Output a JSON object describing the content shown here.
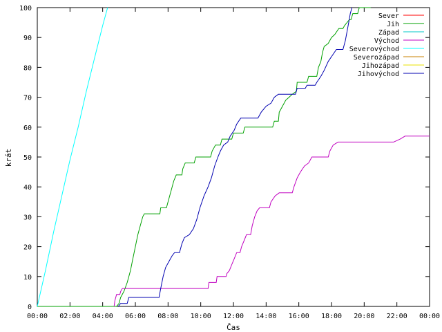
{
  "chart_data": {
    "type": "line",
    "xlabel": "Čas",
    "ylabel": "krát",
    "xlim": [
      0,
      24
    ],
    "ylim": [
      0,
      100
    ],
    "x_ticks": [
      "00:00",
      "02:00",
      "04:00",
      "06:00",
      "08:00",
      "10:00",
      "12:00",
      "14:00",
      "16:00",
      "18:00",
      "20:00",
      "22:00",
      "00:00"
    ],
    "x_tick_values": [
      0,
      2,
      4,
      6,
      8,
      10,
      12,
      14,
      16,
      18,
      20,
      22,
      24
    ],
    "y_ticks": [
      0,
      10,
      20,
      30,
      40,
      50,
      60,
      70,
      80,
      90,
      100
    ],
    "legend_position": "top-right",
    "grid": false,
    "series": [
      {
        "name": "Sever",
        "color": "#ff0000",
        "points": []
      },
      {
        "name": "Jih",
        "color": "#00a000",
        "points": [
          [
            0,
            0
          ],
          [
            4.85,
            0
          ],
          [
            5.0,
            1
          ],
          [
            5.1,
            3
          ],
          [
            5.3,
            5
          ],
          [
            5.5,
            8
          ],
          [
            5.7,
            12
          ],
          [
            5.85,
            16
          ],
          [
            6.0,
            20
          ],
          [
            6.15,
            24
          ],
          [
            6.3,
            27
          ],
          [
            6.45,
            30
          ],
          [
            6.55,
            31
          ],
          [
            7.5,
            31
          ],
          [
            7.55,
            33
          ],
          [
            7.9,
            33
          ],
          [
            8.05,
            36
          ],
          [
            8.2,
            39
          ],
          [
            8.35,
            42
          ],
          [
            8.5,
            44
          ],
          [
            8.85,
            44
          ],
          [
            8.9,
            46
          ],
          [
            9.05,
            48
          ],
          [
            9.6,
            48
          ],
          [
            9.7,
            50
          ],
          [
            10.6,
            50
          ],
          [
            10.7,
            52
          ],
          [
            10.9,
            54
          ],
          [
            11.2,
            54
          ],
          [
            11.3,
            56
          ],
          [
            11.9,
            56
          ],
          [
            12.0,
            58
          ],
          [
            12.6,
            58
          ],
          [
            12.7,
            60
          ],
          [
            14.4,
            60
          ],
          [
            14.5,
            62
          ],
          [
            14.75,
            62
          ],
          [
            14.8,
            65
          ],
          [
            15.0,
            67
          ],
          [
            15.2,
            69
          ],
          [
            15.4,
            70
          ],
          [
            15.6,
            71
          ],
          [
            15.85,
            72
          ],
          [
            15.9,
            75
          ],
          [
            16.5,
            75
          ],
          [
            16.6,
            77
          ],
          [
            17.1,
            77
          ],
          [
            17.2,
            80
          ],
          [
            17.35,
            82
          ],
          [
            17.45,
            85
          ],
          [
            17.55,
            87
          ],
          [
            17.8,
            88
          ],
          [
            18.0,
            90
          ],
          [
            18.2,
            91
          ],
          [
            18.45,
            93
          ],
          [
            18.7,
            93
          ],
          [
            18.8,
            94
          ],
          [
            18.95,
            95
          ],
          [
            19.1,
            96
          ],
          [
            19.2,
            96
          ],
          [
            19.3,
            98
          ],
          [
            19.6,
            98
          ],
          [
            19.7,
            100
          ],
          [
            20.4,
            100
          ]
        ]
      },
      {
        "name": "Západ",
        "color": "#00c8c8",
        "points": []
      },
      {
        "name": "Východ",
        "color": "#c000c0",
        "points": [
          [
            4.7,
            0
          ],
          [
            4.75,
            2
          ],
          [
            4.85,
            4
          ],
          [
            5.05,
            4
          ],
          [
            5.1,
            5
          ],
          [
            5.2,
            6
          ],
          [
            10.45,
            6
          ],
          [
            10.5,
            8
          ],
          [
            10.95,
            8
          ],
          [
            11.0,
            10
          ],
          [
            11.55,
            10
          ],
          [
            11.6,
            11
          ],
          [
            11.75,
            12
          ],
          [
            11.9,
            14
          ],
          [
            12.05,
            16
          ],
          [
            12.2,
            18
          ],
          [
            12.4,
            18
          ],
          [
            12.5,
            20
          ],
          [
            12.65,
            22
          ],
          [
            12.8,
            24
          ],
          [
            13.05,
            24
          ],
          [
            13.15,
            27
          ],
          [
            13.3,
            30
          ],
          [
            13.45,
            32
          ],
          [
            13.6,
            33
          ],
          [
            14.2,
            33
          ],
          [
            14.3,
            35
          ],
          [
            14.55,
            37
          ],
          [
            14.8,
            38
          ],
          [
            15.6,
            38
          ],
          [
            15.7,
            40
          ],
          [
            15.9,
            43
          ],
          [
            16.1,
            45
          ],
          [
            16.35,
            47
          ],
          [
            16.6,
            48
          ],
          [
            16.8,
            50
          ],
          [
            17.8,
            50
          ],
          [
            17.9,
            52
          ],
          [
            18.1,
            54
          ],
          [
            18.4,
            55
          ],
          [
            21.8,
            55
          ],
          [
            22.2,
            56
          ],
          [
            22.5,
            57
          ],
          [
            24,
            57
          ]
        ]
      },
      {
        "name": "Severovýchod",
        "color": "#00ffff",
        "points": [
          [
            0,
            0
          ],
          [
            0.5,
            12
          ],
          [
            1.0,
            25
          ],
          [
            1.5,
            37
          ],
          [
            2.0,
            49
          ],
          [
            2.5,
            60
          ],
          [
            3.0,
            72
          ],
          [
            3.5,
            83
          ],
          [
            4.0,
            94
          ],
          [
            4.3,
            100
          ]
        ]
      },
      {
        "name": "Severozápad",
        "color": "#c88000",
        "points": []
      },
      {
        "name": "Jihozápad",
        "color": "#e8e000",
        "points": []
      },
      {
        "name": "Jihovýchod",
        "color": "#0000b0",
        "points": [
          [
            4.95,
            0
          ],
          [
            5.1,
            1
          ],
          [
            5.5,
            1
          ],
          [
            5.6,
            3
          ],
          [
            7.45,
            3
          ],
          [
            7.55,
            6
          ],
          [
            7.7,
            10
          ],
          [
            7.85,
            13
          ],
          [
            8.05,
            15
          ],
          [
            8.25,
            17
          ],
          [
            8.4,
            18
          ],
          [
            8.7,
            18
          ],
          [
            8.85,
            21
          ],
          [
            9.0,
            23
          ],
          [
            9.3,
            24
          ],
          [
            9.55,
            26
          ],
          [
            9.75,
            29
          ],
          [
            9.95,
            33
          ],
          [
            10.2,
            37
          ],
          [
            10.45,
            40
          ],
          [
            10.65,
            43
          ],
          [
            10.85,
            47
          ],
          [
            11.05,
            50
          ],
          [
            11.2,
            52
          ],
          [
            11.4,
            54
          ],
          [
            11.65,
            55
          ],
          [
            11.8,
            57
          ],
          [
            12.05,
            59
          ],
          [
            12.2,
            61
          ],
          [
            12.45,
            63
          ],
          [
            13.5,
            63
          ],
          [
            13.7,
            65
          ],
          [
            14.0,
            67
          ],
          [
            14.3,
            68
          ],
          [
            14.5,
            70
          ],
          [
            14.75,
            71
          ],
          [
            15.8,
            71
          ],
          [
            15.9,
            73
          ],
          [
            16.4,
            73
          ],
          [
            16.5,
            74
          ],
          [
            17.0,
            74
          ],
          [
            17.1,
            75
          ],
          [
            17.35,
            77
          ],
          [
            17.55,
            79
          ],
          [
            17.8,
            82
          ],
          [
            18.05,
            84
          ],
          [
            18.3,
            86
          ],
          [
            18.7,
            86
          ],
          [
            18.85,
            89
          ],
          [
            18.95,
            92
          ],
          [
            19.05,
            95
          ],
          [
            19.15,
            98
          ],
          [
            19.25,
            100
          ]
        ]
      }
    ]
  }
}
